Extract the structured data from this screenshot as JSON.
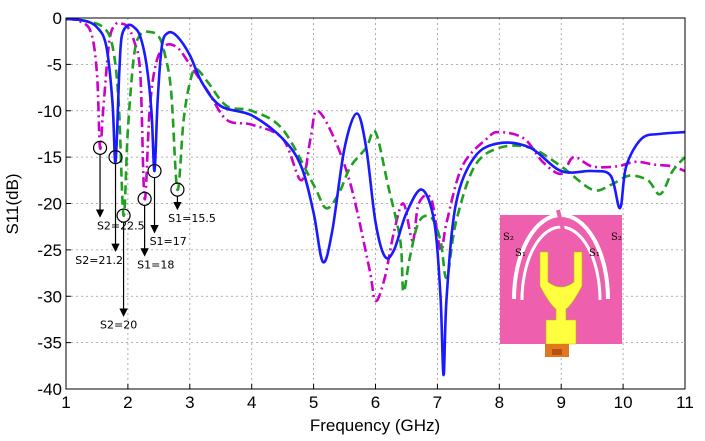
{
  "chart_data": {
    "type": "line",
    "title": "",
    "xlabel": "Frequency (GHz)",
    "ylabel": "S11(dB)",
    "xlim": [
      1,
      11
    ],
    "ylim": [
      -40,
      0
    ],
    "xticks": [
      1,
      2,
      3,
      4,
      5,
      6,
      7,
      8,
      9,
      10,
      11
    ],
    "yticks": [
      0,
      -5,
      -10,
      -15,
      -20,
      -25,
      -30,
      -35,
      -40
    ],
    "xtick_labels": [
      "1",
      "2",
      "3",
      "4",
      "5",
      "6",
      "7",
      "8",
      "9",
      "10",
      "11"
    ],
    "ytick_labels": [
      "0",
      "-5",
      "-10",
      "-15",
      "-20",
      "-25",
      "-30",
      "-35",
      "-40"
    ],
    "grid": true,
    "legend": "none",
    "series": [
      {
        "color": "#1a1aff",
        "style": "solid",
        "points": [
          [
            1,
            -0.1
          ],
          [
            1.3,
            -0.3
          ],
          [
            1.5,
            -1
          ],
          [
            1.65,
            -3
          ],
          [
            1.75,
            -9
          ],
          [
            1.8,
            -15.5
          ],
          [
            1.86,
            -6
          ],
          [
            1.9,
            -2
          ],
          [
            2.0,
            -0.8
          ],
          [
            2.1,
            -1
          ],
          [
            2.2,
            -2
          ],
          [
            2.3,
            -5
          ],
          [
            2.38,
            -10
          ],
          [
            2.43,
            -16.5
          ],
          [
            2.48,
            -9
          ],
          [
            2.55,
            -3
          ],
          [
            2.65,
            -1.6
          ],
          [
            2.8,
            -2
          ],
          [
            3.0,
            -4
          ],
          [
            3.2,
            -7
          ],
          [
            3.5,
            -9.5
          ],
          [
            4.0,
            -10.5
          ],
          [
            4.5,
            -13
          ],
          [
            4.8,
            -16
          ],
          [
            5.0,
            -21
          ],
          [
            5.15,
            -26.3
          ],
          [
            5.3,
            -23
          ],
          [
            5.5,
            -14
          ],
          [
            5.7,
            -10.3
          ],
          [
            5.85,
            -14
          ],
          [
            6.0,
            -22
          ],
          [
            6.15,
            -25.7
          ],
          [
            6.3,
            -25
          ],
          [
            6.5,
            -21
          ],
          [
            6.75,
            -18.5
          ],
          [
            6.95,
            -22
          ],
          [
            7.05,
            -30
          ],
          [
            7.1,
            -38.5
          ],
          [
            7.15,
            -30
          ],
          [
            7.3,
            -20
          ],
          [
            7.6,
            -15
          ],
          [
            8.0,
            -13.5
          ],
          [
            8.5,
            -14
          ],
          [
            9.0,
            -16.5
          ],
          [
            9.5,
            -16.5
          ],
          [
            9.8,
            -17
          ],
          [
            9.95,
            -20.5
          ],
          [
            10.05,
            -16
          ],
          [
            10.3,
            -13
          ],
          [
            10.6,
            -12.5
          ],
          [
            11.0,
            -12.3
          ]
        ]
      },
      {
        "color": "#20a020",
        "style": "dashed",
        "points": [
          [
            1,
            -0.1
          ],
          [
            1.3,
            -0.3
          ],
          [
            1.6,
            -1
          ],
          [
            1.75,
            -3
          ],
          [
            1.85,
            -9
          ],
          [
            1.93,
            -21.3
          ],
          [
            2.0,
            -12
          ],
          [
            2.1,
            -4
          ],
          [
            2.2,
            -1.8
          ],
          [
            2.35,
            -1.5
          ],
          [
            2.5,
            -2
          ],
          [
            2.6,
            -4
          ],
          [
            2.7,
            -8
          ],
          [
            2.8,
            -18.5
          ],
          [
            2.9,
            -11
          ],
          [
            3.0,
            -7
          ],
          [
            3.1,
            -5.5
          ],
          [
            3.3,
            -7
          ],
          [
            3.6,
            -9.5
          ],
          [
            4.0,
            -10
          ],
          [
            4.5,
            -12
          ],
          [
            5.0,
            -18
          ],
          [
            5.2,
            -20.5
          ],
          [
            5.4,
            -19
          ],
          [
            5.6,
            -16
          ],
          [
            5.85,
            -14
          ],
          [
            6.0,
            -12.3
          ],
          [
            6.2,
            -18
          ],
          [
            6.4,
            -24
          ],
          [
            6.45,
            -29.5
          ],
          [
            6.55,
            -26
          ],
          [
            6.7,
            -22
          ],
          [
            6.9,
            -21.5
          ],
          [
            7.05,
            -24
          ],
          [
            7.15,
            -28
          ],
          [
            7.3,
            -22
          ],
          [
            7.6,
            -16
          ],
          [
            8.0,
            -14
          ],
          [
            8.5,
            -14
          ],
          [
            9.0,
            -16
          ],
          [
            9.5,
            -18.5
          ],
          [
            9.8,
            -18
          ],
          [
            10.1,
            -17
          ],
          [
            10.4,
            -17.5
          ],
          [
            10.6,
            -19
          ],
          [
            10.8,
            -16.5
          ],
          [
            11.0,
            -15
          ]
        ]
      },
      {
        "color": "#cc00cc",
        "style": "dashdot",
        "points": [
          [
            1,
            -0.1
          ],
          [
            1.2,
            -0.3
          ],
          [
            1.4,
            -1.5
          ],
          [
            1.5,
            -6
          ],
          [
            1.55,
            -14
          ],
          [
            1.6,
            -10
          ],
          [
            1.7,
            -2.5
          ],
          [
            1.8,
            -0.7
          ],
          [
            1.9,
            -0.6
          ],
          [
            2.0,
            -1
          ],
          [
            2.1,
            -2.5
          ],
          [
            2.2,
            -6
          ],
          [
            2.27,
            -19.5
          ],
          [
            2.35,
            -10
          ],
          [
            2.45,
            -5
          ],
          [
            2.6,
            -3
          ],
          [
            2.8,
            -3.2
          ],
          [
            3.0,
            -5
          ],
          [
            3.3,
            -8
          ],
          [
            3.6,
            -11
          ],
          [
            4.0,
            -11.5
          ],
          [
            4.5,
            -13
          ],
          [
            4.8,
            -17.5
          ],
          [
            4.95,
            -13
          ],
          [
            5.05,
            -10
          ],
          [
            5.3,
            -12.5
          ],
          [
            5.6,
            -18
          ],
          [
            5.9,
            -27
          ],
          [
            6.0,
            -30.5
          ],
          [
            6.15,
            -28
          ],
          [
            6.3,
            -23
          ],
          [
            6.45,
            -20
          ],
          [
            6.6,
            -24
          ],
          [
            6.7,
            -20
          ],
          [
            6.9,
            -19.5
          ],
          [
            7.05,
            -25
          ],
          [
            7.15,
            -22
          ],
          [
            7.4,
            -16
          ],
          [
            7.8,
            -13
          ],
          [
            8.0,
            -12.3
          ],
          [
            8.4,
            -13
          ],
          [
            8.7,
            -15.5
          ],
          [
            9.0,
            -16.8
          ],
          [
            9.2,
            -15
          ],
          [
            9.5,
            -16
          ],
          [
            9.9,
            -16
          ],
          [
            10.2,
            -15.5
          ],
          [
            10.5,
            -15.8
          ],
          [
            10.8,
            -16
          ],
          [
            11.0,
            -16.5
          ]
        ]
      }
    ],
    "annotations": [
      {
        "text": "S2=22.5",
        "marker": [
          1.55,
          -14
        ],
        "label": [
          1.5,
          -22.8
        ]
      },
      {
        "text": "S2=21.2",
        "marker": [
          1.8,
          -15
        ],
        "label": [
          1.15,
          -26.5
        ]
      },
      {
        "text": "S2=20",
        "marker": [
          1.93,
          -21.3
        ],
        "label": [
          1.55,
          -33.5
        ]
      },
      {
        "text": "S1=18",
        "marker": [
          2.27,
          -19.5
        ],
        "label": [
          2.15,
          -27
        ]
      },
      {
        "text": "S1=17",
        "marker": [
          2.43,
          -16.5
        ],
        "label": [
          2.35,
          -24.5
        ]
      },
      {
        "text": "S1=15.5",
        "marker": [
          2.8,
          -18.5
        ],
        "label": [
          2.65,
          -22
        ]
      }
    ],
    "inset_labels": [
      "S₂",
      "S₁",
      "S₁",
      "S₂"
    ]
  }
}
